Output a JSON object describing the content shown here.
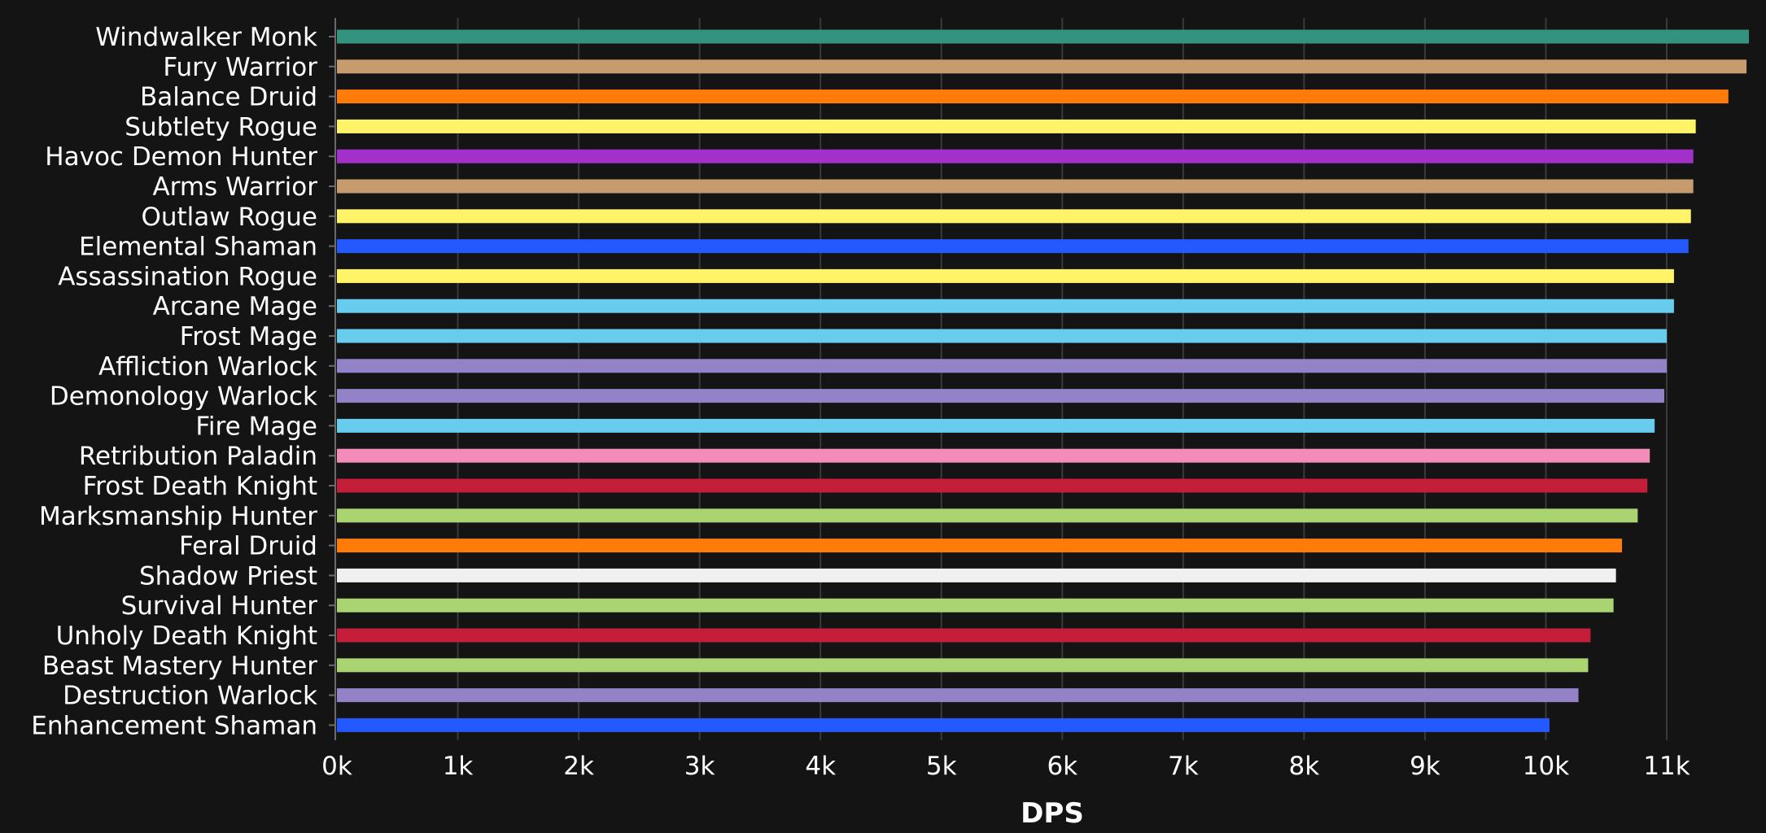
{
  "chart_data": {
    "type": "bar",
    "orientation": "horizontal",
    "xlabel": "DPS",
    "ylabel": "",
    "xlim": [
      0,
      11700
    ],
    "grid": true,
    "x_ticks": [
      {
        "value": 0,
        "label": "0k"
      },
      {
        "value": 1000,
        "label": "1k"
      },
      {
        "value": 2000,
        "label": "2k"
      },
      {
        "value": 3000,
        "label": "3k"
      },
      {
        "value": 4000,
        "label": "4k"
      },
      {
        "value": 5000,
        "label": "5k"
      },
      {
        "value": 6000,
        "label": "6k"
      },
      {
        "value": 7000,
        "label": "7k"
      },
      {
        "value": 8000,
        "label": "8k"
      },
      {
        "value": 9000,
        "label": "9k"
      },
      {
        "value": 10000,
        "label": "10k"
      },
      {
        "value": 11000,
        "label": "11k"
      }
    ],
    "categories": [
      "Windwalker Monk",
      "Fury Warrior",
      "Balance Druid",
      "Subtlety Rogue",
      "Havoc Demon Hunter",
      "Arms Warrior",
      "Outlaw Rogue",
      "Elemental Shaman",
      "Assassination Rogue",
      "Arcane Mage",
      "Frost Mage",
      "Affliction Warlock",
      "Demonology Warlock",
      "Fire Mage",
      "Retribution Paladin",
      "Frost Death Knight",
      "Marksmanship Hunter",
      "Feral Druid",
      "Shadow Priest",
      "Survival Hunter",
      "Unholy Death Knight",
      "Beast Mastery Hunter",
      "Destruction Warlock",
      "Enhancement Shaman"
    ],
    "values": [
      11680,
      11660,
      11510,
      11240,
      11220,
      11220,
      11200,
      11180,
      11060,
      11060,
      11000,
      11000,
      10980,
      10900,
      10860,
      10840,
      10760,
      10630,
      10580,
      10560,
      10370,
      10350,
      10270,
      10030
    ],
    "colors": [
      "#33937f",
      "#c69b6d",
      "#ff7c0a",
      "#fff468",
      "#a330c9",
      "#c69b6d",
      "#fff468",
      "#2459ff",
      "#fff468",
      "#68ccef",
      "#68ccef",
      "#9482c9",
      "#9482c9",
      "#68ccef",
      "#f48cba",
      "#c41e3a",
      "#aad372",
      "#ff7c0a",
      "#f0f0f0",
      "#aad372",
      "#c41e3a",
      "#aad372",
      "#9482c9",
      "#2459ff"
    ]
  }
}
